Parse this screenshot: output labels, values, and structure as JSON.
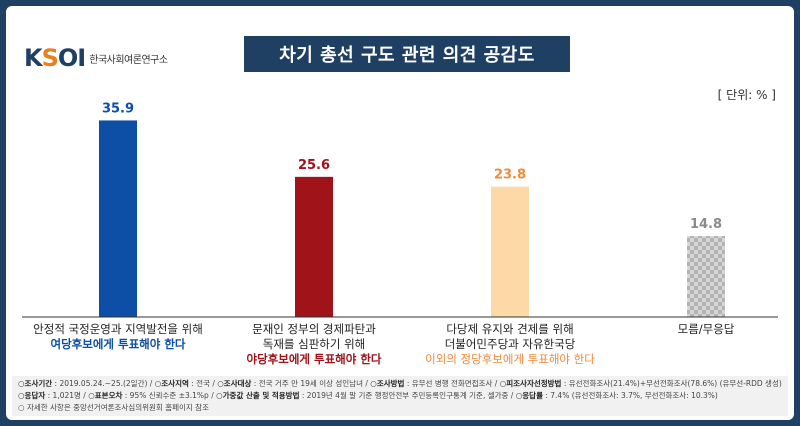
{
  "header": {
    "logo_text": "KSOI",
    "org_name": "한국사회여론연구소",
    "title": "차기 총선 구도 관련 의견 공감도",
    "unit": "[ 단위: % ]"
  },
  "chart_data": {
    "type": "bar",
    "title": "차기 총선 구도 관련 의견 공감도",
    "unit": "[ 단위: % ]",
    "ylim": [
      0,
      40
    ],
    "grid": false,
    "categories": [
      {
        "line1": "안정적 국정운영과 지역발전을 위해",
        "line2": "",
        "emphasis": "여당후보에게 투표해야 한다",
        "color": "#0d4ea6",
        "label_color": "#0d4ea6"
      },
      {
        "line1": "문재인 정부의 경제파탄과",
        "line2": "독재를 심판하기 위해",
        "emphasis": "야당후보에게 투표해야 한다",
        "color": "#a01319",
        "label_color": "#a01319"
      },
      {
        "line1": "다당제 유지와 견제를 위해",
        "line2": "더불어민주당과 자유한국당",
        "emphasis": "이외의 정당후보에게 투표해야 한다",
        "color": "#fdd9a8",
        "label_color": "#f08a3c"
      },
      {
        "line1": "모름/무응답",
        "line2": "",
        "emphasis": "",
        "color": "#c4c4c4",
        "label_color": "#8a8a8a",
        "pattern": "checker"
      }
    ],
    "values": [
      35.9,
      25.6,
      23.8,
      14.8
    ],
    "value_labels": [
      "35.9",
      "25.6",
      "23.8",
      "14.8"
    ]
  },
  "footer": {
    "row1": [
      {
        "k": "조사기간",
        "v": "2019.05.24.~25.(2일간)"
      },
      {
        "k": "조사지역",
        "v": "전국"
      },
      {
        "k": "조사대상",
        "v": "전국 거주 만 19세 이상 성인남녀"
      },
      {
        "k": "조사방법",
        "v": "유무선 병행 전화면접조사"
      },
      {
        "k": "피조사자선정방법",
        "v": "유선전화조사(21.4%)+무선전화조사(78.6%) (유무선-RDD 생성)"
      }
    ],
    "row2": [
      {
        "k": "응답자",
        "v": "1,021명"
      },
      {
        "k": "표본오차",
        "v": "95% 신뢰수준 ±3.1%p"
      },
      {
        "k": "가중값 산출 및 적용방법",
        "v": "2019년 4월 말 기준 행정안전부 주민등록인구통계 기준, 셀가중"
      },
      {
        "k": "응답률",
        "v": "7.4% (유선전화조사: 3.7%, 무선전화조사: 10.3%)"
      }
    ],
    "row3": "자세한 사항은 중앙선거여론조사심의위원회 홈페이지 참조"
  }
}
